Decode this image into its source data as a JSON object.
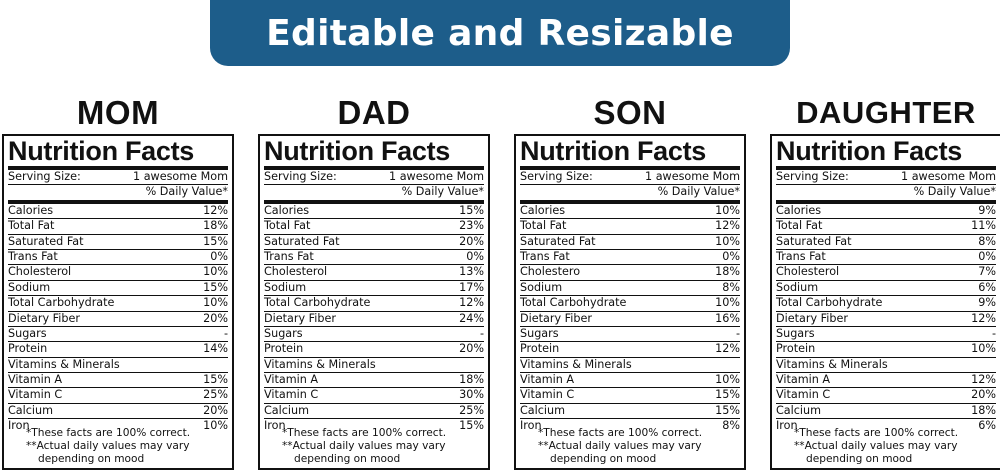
{
  "banner": {
    "text": "Editable and Resizable",
    "color": "#1d5d8a"
  },
  "labels": {
    "title": "Nutrition Facts",
    "serving_label": "Serving Size:",
    "serving_value": "1 awesome Mom",
    "daily_value": "% Daily Value*",
    "footnote1": "*These facts are 100% correct.",
    "footnote2": "**Actual daily values may vary",
    "footnote3": "depending on mood"
  },
  "cards": [
    {
      "member": "MOM",
      "nutrients": [
        {
          "label": "Calories",
          "value": "12%"
        },
        {
          "label": "Total Fat",
          "value": "18%"
        },
        {
          "label": "Saturated Fat",
          "value": "15%"
        },
        {
          "label": "Trans Fat",
          "value": "0%"
        },
        {
          "label": "Cholesterol",
          "value": "10%"
        },
        {
          "label": "Sodium",
          "value": "15%"
        },
        {
          "label": "Total Carbohydrate",
          "value": "10%"
        },
        {
          "label": "Dietary Fiber",
          "value": "20%"
        },
        {
          "label": "Sugars",
          "value": "-"
        },
        {
          "label": "Protein",
          "value": "14%"
        }
      ],
      "vitamins_header": "Vitamins & Minerals",
      "vitamins": [
        {
          "label": "Vitamin A",
          "value": "15%"
        },
        {
          "label": "Vitamin C",
          "value": "25%"
        },
        {
          "label": "Calcium",
          "value": "20%"
        },
        {
          "label": "Iron",
          "value": "10%"
        }
      ]
    },
    {
      "member": "DAD",
      "nutrients": [
        {
          "label": "Calories",
          "value": "15%"
        },
        {
          "label": "Total Fat",
          "value": "23%"
        },
        {
          "label": "Saturated Fat",
          "value": "20%"
        },
        {
          "label": "Trans Fat",
          "value": "0%"
        },
        {
          "label": "Cholesterol",
          "value": "13%"
        },
        {
          "label": "Sodium",
          "value": "17%"
        },
        {
          "label": "Total Carbohydrate",
          "value": "12%"
        },
        {
          "label": "Dietary Fiber",
          "value": "24%"
        },
        {
          "label": "Sugars",
          "value": "-"
        },
        {
          "label": "Protein",
          "value": "20%"
        }
      ],
      "vitamins_header": "Vitamins & Minerals",
      "vitamins": [
        {
          "label": "Vitamin A",
          "value": "18%"
        },
        {
          "label": "Vitamin C",
          "value": "30%"
        },
        {
          "label": "Calcium",
          "value": "25%"
        },
        {
          "label": "Iron",
          "value": "15%"
        }
      ]
    },
    {
      "member": "SON",
      "nutrients": [
        {
          "label": "Calories",
          "value": "10%"
        },
        {
          "label": "Total Fat",
          "value": "12%"
        },
        {
          "label": "Saturated Fat",
          "value": "10%"
        },
        {
          "label": "Trans Fat",
          "value": "0%"
        },
        {
          "label": "Cholestero",
          "value": "18%"
        },
        {
          "label": "Sodium",
          "value": "8%"
        },
        {
          "label": "Total Carbohydrate",
          "value": "10%"
        },
        {
          "label": "Dietary Fiber",
          "value": "16%"
        },
        {
          "label": "Sugars",
          "value": "-"
        },
        {
          "label": "Protein",
          "value": "12%"
        }
      ],
      "vitamins_header": "Vitamins & Minerals",
      "vitamins": [
        {
          "label": "Vitamin A",
          "value": "10%"
        },
        {
          "label": "Vitamin C",
          "value": "15%"
        },
        {
          "label": "Calcium",
          "value": "15%"
        },
        {
          "label": "Iron",
          "value": "8%"
        }
      ]
    },
    {
      "member": "DAUGHTER",
      "nutrients": [
        {
          "label": "Calories",
          "value": "9%"
        },
        {
          "label": "Total Fat",
          "value": "11%"
        },
        {
          "label": "Saturated Fat",
          "value": "8%"
        },
        {
          "label": "Trans Fat",
          "value": "0%"
        },
        {
          "label": "Cholesterol",
          "value": "7%"
        },
        {
          "label": "Sodium",
          "value": "6%"
        },
        {
          "label": "Total Carbohydrate",
          "value": "9%"
        },
        {
          "label": "Dietary Fiber",
          "value": "12%"
        },
        {
          "label": "Sugars",
          "value": "-"
        },
        {
          "label": "Protein",
          "value": "10%"
        }
      ],
      "vitamins_header": "Vitamins & Minerals",
      "vitamins": [
        {
          "label": "Vitamin A",
          "value": "12%"
        },
        {
          "label": "Vitamin C",
          "value": "20%"
        },
        {
          "label": "Calcium",
          "value": "18%"
        },
        {
          "label": "Iron",
          "value": "6%"
        }
      ]
    }
  ]
}
